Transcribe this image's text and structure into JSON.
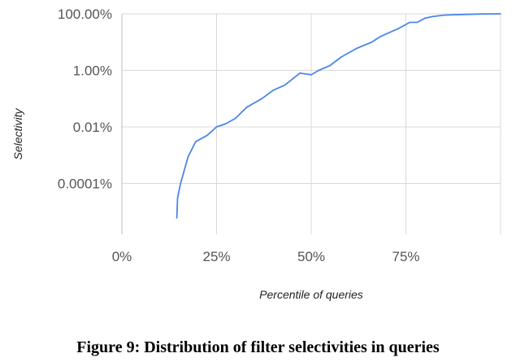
{
  "chart_data": {
    "type": "line",
    "title": "",
    "xlabel": "Percentile of queries",
    "ylabel": "Selectivity",
    "x_ticks": [
      "0%",
      "25%",
      "50%",
      "75%"
    ],
    "y_ticks": [
      "100.00%",
      "1.00%",
      "0.01%",
      "0.0001%"
    ],
    "xlim": [
      0,
      100
    ],
    "ylim_log10_percent": [
      -5.8,
      2
    ],
    "y_scale": "log",
    "grid": true,
    "series": [
      {
        "color": "#4a86e8",
        "x": [
          14.5,
          14.7,
          15.5,
          16.5,
          17.5,
          19.5,
          22.5,
          25,
          27.5,
          30,
          33,
          37,
          40,
          43,
          47,
          50,
          52,
          55,
          58,
          62,
          66,
          68,
          70,
          73,
          76,
          78,
          80,
          82,
          85,
          90,
          95,
          100
        ],
        "y": [
          6e-06,
          3e-05,
          0.0001,
          0.0003,
          0.0009,
          0.003,
          0.005,
          0.01,
          0.013,
          0.02,
          0.05,
          0.1,
          0.2,
          0.3,
          0.8,
          0.7,
          1,
          1.5,
          3,
          6,
          10,
          15,
          20,
          30,
          50,
          50,
          70,
          80,
          90,
          95,
          99,
          100
        ]
      }
    ]
  },
  "caption": "Figure 9: Distribution of filter selectivities in queries"
}
